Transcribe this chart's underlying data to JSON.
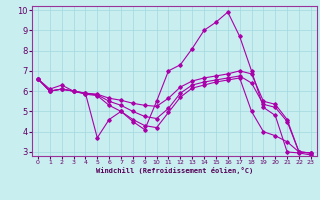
{
  "xlabel": "Windchill (Refroidissement éolien,°C)",
  "xlim": [
    -0.5,
    23.5
  ],
  "ylim": [
    2.8,
    10.2
  ],
  "yticks": [
    3,
    4,
    5,
    6,
    7,
    8,
    9,
    10
  ],
  "xticks": [
    0,
    1,
    2,
    3,
    4,
    5,
    6,
    7,
    8,
    9,
    10,
    11,
    12,
    13,
    14,
    15,
    16,
    17,
    18,
    19,
    20,
    21,
    22,
    23
  ],
  "background_color": "#c8eef0",
  "line_color": "#aa00aa",
  "grid_color": "#a0d8e0",
  "lines": [
    {
      "x": [
        0,
        1,
        2,
        3,
        4,
        5,
        6,
        7,
        8,
        9,
        10,
        11,
        12,
        13,
        14,
        15,
        16,
        17,
        18,
        19,
        20,
        21,
        22,
        23
      ],
      "y": [
        6.6,
        6.1,
        6.3,
        6.0,
        5.9,
        3.7,
        4.6,
        5.0,
        4.5,
        4.1,
        5.5,
        7.0,
        7.3,
        8.1,
        9.0,
        9.4,
        9.9,
        8.7,
        7.0,
        5.2,
        4.8,
        3.0,
        2.95,
        2.85
      ]
    },
    {
      "x": [
        0,
        1,
        2,
        3,
        4,
        5,
        6,
        7,
        8,
        9,
        10,
        11,
        12,
        13,
        14,
        15,
        16,
        17,
        18,
        19,
        20,
        21,
        22,
        23
      ],
      "y": [
        6.6,
        6.0,
        6.1,
        6.0,
        5.9,
        5.85,
        5.65,
        5.55,
        5.4,
        5.3,
        5.25,
        5.65,
        6.2,
        6.5,
        6.65,
        6.75,
        6.85,
        7.0,
        6.85,
        5.5,
        5.35,
        4.6,
        3.0,
        2.95
      ]
    },
    {
      "x": [
        0,
        1,
        2,
        3,
        4,
        5,
        6,
        7,
        8,
        9,
        10,
        11,
        12,
        13,
        14,
        15,
        16,
        17,
        18,
        19,
        20,
        21,
        22,
        23
      ],
      "y": [
        6.6,
        6.0,
        6.1,
        6.0,
        5.88,
        5.82,
        5.5,
        5.3,
        5.0,
        4.75,
        4.65,
        5.15,
        5.9,
        6.3,
        6.45,
        6.55,
        6.65,
        6.75,
        6.4,
        5.35,
        5.2,
        4.5,
        3.0,
        2.95
      ]
    },
    {
      "x": [
        0,
        1,
        2,
        3,
        4,
        5,
        6,
        7,
        8,
        9,
        10,
        11,
        12,
        13,
        14,
        15,
        16,
        17,
        18,
        19,
        20,
        21,
        22,
        23
      ],
      "y": [
        6.6,
        6.0,
        6.1,
        6.0,
        5.85,
        5.78,
        5.3,
        5.0,
        4.6,
        4.3,
        4.2,
        4.95,
        5.7,
        6.15,
        6.3,
        6.45,
        6.55,
        6.65,
        5.0,
        4.0,
        3.8,
        3.5,
        3.0,
        2.95
      ]
    }
  ]
}
